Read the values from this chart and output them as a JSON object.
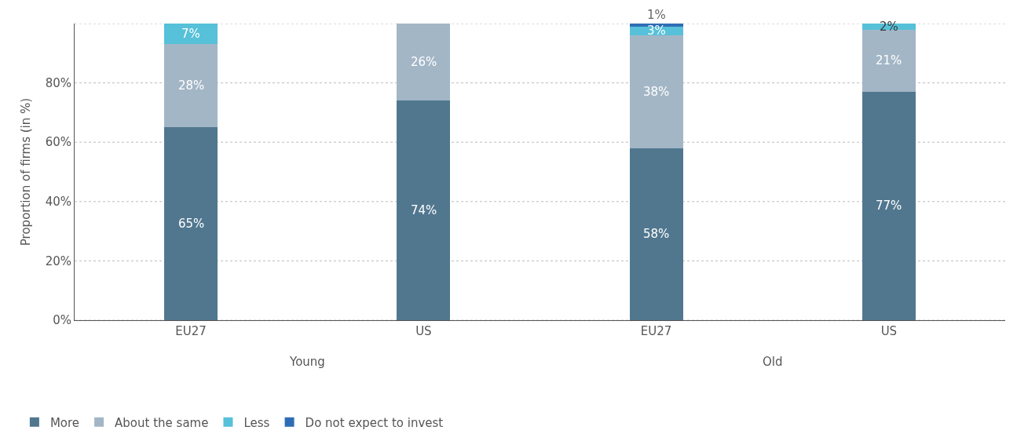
{
  "chart_data": {
    "type": "bar",
    "stacked": true,
    "ylabel": "Proportion of firms (in %)",
    "categories": [
      "EU27",
      "US",
      "EU27",
      "US"
    ],
    "annotations": [
      "Young",
      "Old"
    ],
    "series": [
      {
        "name": "More",
        "color": "#51778f",
        "values": [
          65,
          74,
          58,
          77
        ],
        "value_labels": [
          "65%",
          "74%",
          "58%",
          "77%"
        ]
      },
      {
        "name": "About the same",
        "color": "#a3b6c6",
        "values": [
          28,
          26,
          38,
          21
        ],
        "value_labels": [
          "28%",
          "26%",
          "38%",
          "21%"
        ]
      },
      {
        "name": "Less",
        "color": "#56c1d8",
        "values": [
          7,
          0,
          3,
          2
        ],
        "value_labels": [
          "7%",
          null,
          "3%",
          "2%"
        ]
      },
      {
        "name": "Do not expect to invest",
        "color": "#2e6db5",
        "values": [
          0,
          0,
          1,
          0
        ],
        "value_labels": [
          null,
          null,
          "1%",
          null
        ]
      }
    ],
    "ylim": [
      0,
      100
    ],
    "yticks": [
      {
        "value": 0,
        "label": "0%"
      },
      {
        "value": 20,
        "label": "20%"
      },
      {
        "value": 40,
        "label": "40%"
      },
      {
        "value": 60,
        "label": "60%"
      },
      {
        "value": 80,
        "label": "80%"
      },
      {
        "value": 100,
        "label": null
      }
    ],
    "grid": "y",
    "legend": "bottom left"
  }
}
